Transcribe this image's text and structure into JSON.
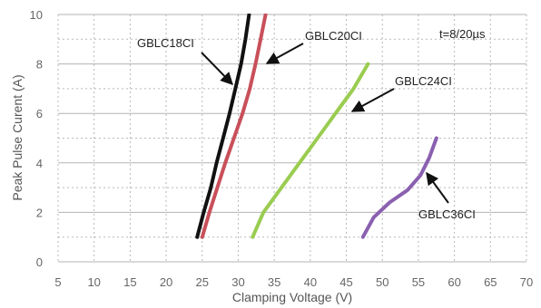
{
  "chart_data": {
    "type": "line",
    "note": "t=8/20µs",
    "xlabel": "Clamping Voltage (V)",
    "ylabel": "Peak  Pulse Curent (A)",
    "xlim": [
      5,
      70
    ],
    "ylim": [
      0,
      10
    ],
    "x_ticks": [
      5,
      10,
      15,
      20,
      25,
      30,
      35,
      40,
      45,
      50,
      55,
      60,
      65,
      70
    ],
    "y_ticks": [
      0,
      2,
      4,
      6,
      8,
      10
    ],
    "grid": true,
    "series": [
      {
        "name": "GBLC18CI",
        "color": "#111111",
        "points": [
          [
            24.3,
            1.0
          ],
          [
            25.2,
            2.0
          ],
          [
            26.2,
            3.0
          ],
          [
            27.0,
            4.0
          ],
          [
            27.9,
            5.0
          ],
          [
            28.8,
            6.0
          ],
          [
            29.6,
            7.0
          ],
          [
            30.4,
            8.0
          ],
          [
            31.0,
            9.0
          ],
          [
            31.5,
            10.0
          ]
        ]
      },
      {
        "name": "GBLC20CI",
        "color": "#c8505a",
        "points": [
          [
            25.0,
            1.0
          ],
          [
            26.0,
            2.0
          ],
          [
            27.1,
            3.0
          ],
          [
            28.2,
            4.0
          ],
          [
            29.4,
            5.0
          ],
          [
            30.6,
            6.0
          ],
          [
            31.6,
            7.0
          ],
          [
            32.4,
            8.0
          ],
          [
            33.1,
            9.0
          ],
          [
            33.8,
            10.0
          ]
        ]
      },
      {
        "name": "GBLC24CI",
        "color": "#9acc50",
        "points": [
          [
            32.0,
            1.0
          ],
          [
            33.5,
            2.0
          ],
          [
            36.0,
            3.0
          ],
          [
            38.5,
            4.0
          ],
          [
            41.0,
            5.0
          ],
          [
            43.5,
            6.0
          ],
          [
            46.0,
            7.0
          ],
          [
            48.0,
            8.0
          ]
        ]
      },
      {
        "name": "GBLC36CI",
        "color": "#8a60b0",
        "points": [
          [
            47.3,
            1.0
          ],
          [
            48.8,
            1.8
          ],
          [
            51.0,
            2.4
          ],
          [
            53.5,
            2.9
          ],
          [
            55.3,
            3.5
          ],
          [
            56.5,
            4.2
          ],
          [
            57.5,
            5.0
          ]
        ]
      }
    ],
    "curve_labels": [
      {
        "series": "GBLC18CI",
        "text": "GBLC18CI"
      },
      {
        "series": "GBLC20CI",
        "text": "GBLC20CI"
      },
      {
        "series": "GBLC24CI",
        "text": "GBLC24CI"
      },
      {
        "series": "GBLC36CI",
        "text": "GBLC36CI"
      }
    ]
  }
}
